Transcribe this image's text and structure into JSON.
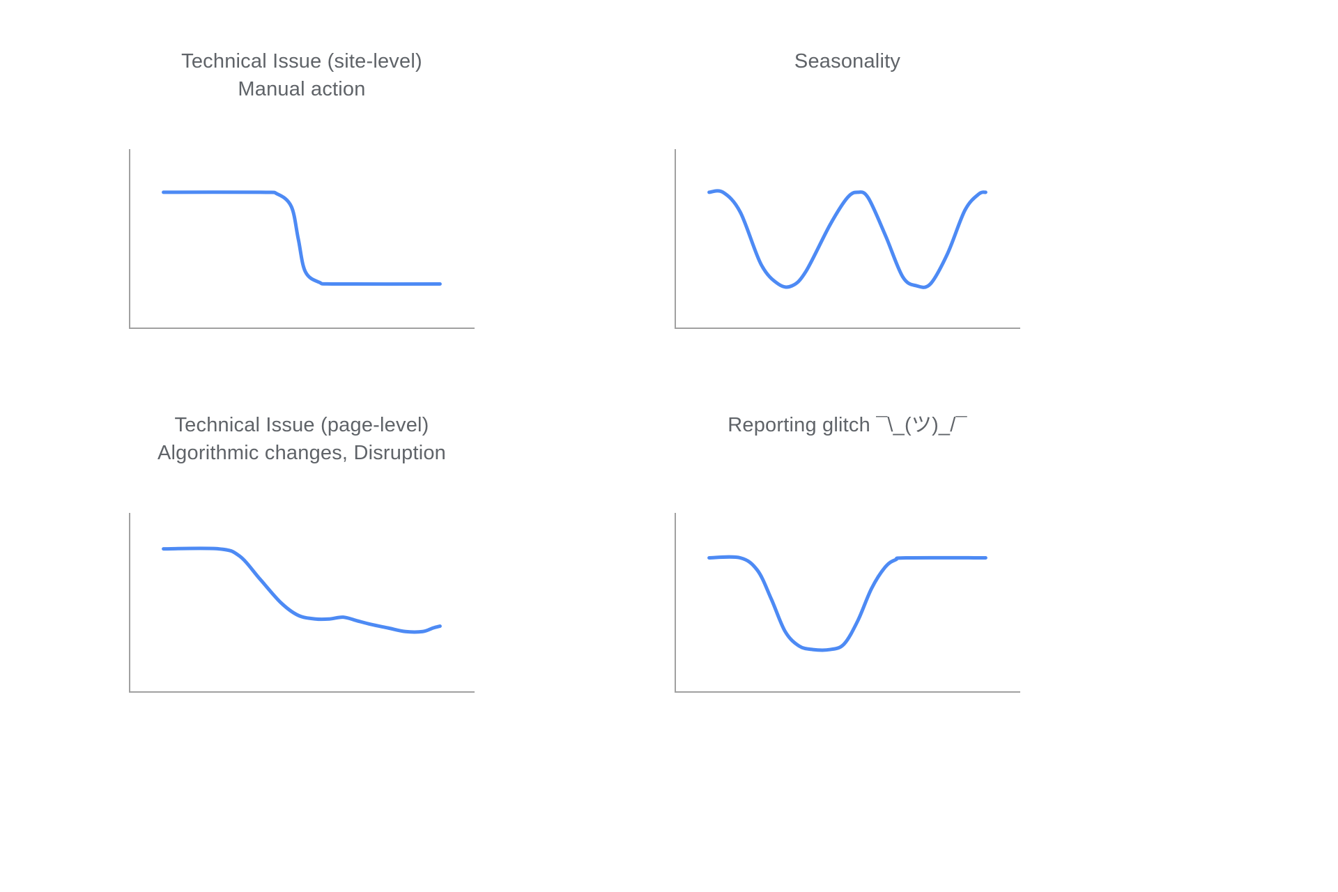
{
  "styles": {
    "line_color": "#4d8af4",
    "axis_color": "#a0a0a0",
    "title_color": "#5f6368",
    "background": "#ffffff"
  },
  "chart_data": [
    {
      "type": "line",
      "title_lines": [
        "Technical Issue (site-level)",
        "Manual action"
      ],
      "pattern": "flat high level, sharp sigmoid drop, flat low level",
      "xlim": [
        0,
        100
      ],
      "ylim": [
        0,
        100
      ],
      "grid": false,
      "legend": false,
      "x": [
        10,
        38,
        43,
        47,
        49,
        51,
        55,
        60,
        90
      ],
      "y": [
        76,
        76,
        75,
        68,
        50,
        32,
        26,
        25,
        25
      ]
    },
    {
      "type": "line",
      "title_lines": [
        "Seasonality"
      ],
      "pattern": "repeating wave: high, valley, recovery peak, valley, recovery",
      "xlim": [
        0,
        100
      ],
      "ylim": [
        0,
        100
      ],
      "grid": false,
      "legend": false,
      "x": [
        10,
        14,
        19,
        25,
        30,
        34,
        38,
        45,
        50,
        53,
        56,
        61,
        66,
        70,
        74,
        79,
        84,
        88,
        90
      ],
      "y": [
        76,
        76,
        65,
        36,
        25,
        24,
        32,
        58,
        73,
        76,
        73,
        52,
        29,
        24,
        25,
        42,
        66,
        75,
        76
      ]
    },
    {
      "type": "line",
      "title_lines": [
        "Technical Issue (page-level)",
        "Algorithmic changes, Disruption"
      ],
      "pattern": "flat high level, gradual decline, wobbly slowly-declining low plateau",
      "xlim": [
        0,
        100
      ],
      "ylim": [
        0,
        100
      ],
      "grid": false,
      "legend": false,
      "x": [
        10,
        26,
        32,
        38,
        44,
        49,
        54,
        58,
        62,
        66,
        70,
        75,
        80,
        85,
        88,
        90
      ],
      "y": [
        80,
        80,
        76,
        63,
        50,
        43,
        41,
        41,
        42,
        40,
        38,
        36,
        34,
        34,
        36,
        37
      ]
    },
    {
      "type": "line",
      "title_lines": [
        "Reporting glitch ¯\\_(ツ)_/¯"
      ],
      "pattern": "flat high level, temporary dip valley, full recovery to same level",
      "xlim": [
        0,
        100
      ],
      "ylim": [
        0,
        100
      ],
      "grid": false,
      "legend": false,
      "x": [
        10,
        19,
        24,
        28,
        32,
        36,
        40,
        45,
        49,
        53,
        57,
        61,
        64,
        67,
        90
      ],
      "y": [
        75,
        75,
        68,
        52,
        34,
        26,
        24,
        24,
        27,
        40,
        58,
        70,
        74,
        75,
        75
      ]
    }
  ]
}
